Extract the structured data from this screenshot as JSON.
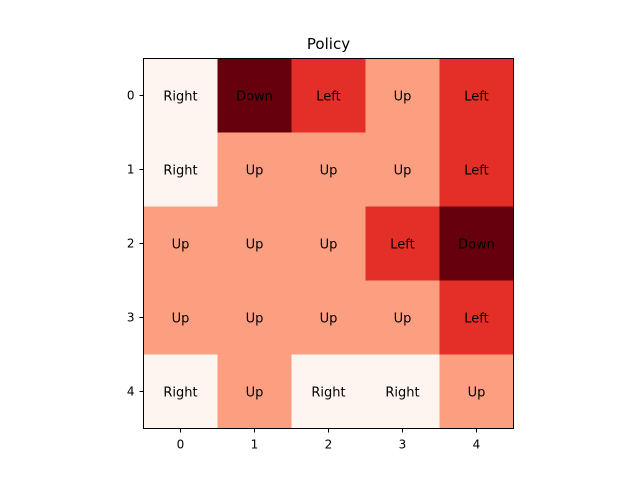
{
  "chart_data": {
    "type": "heatmap",
    "title": "Policy",
    "xlabel": "",
    "ylabel": "",
    "x_ticks": [
      "0",
      "1",
      "2",
      "3",
      "4"
    ],
    "y_ticks": [
      "0",
      "1",
      "2",
      "3",
      "4"
    ],
    "colormap": "Reds",
    "action_values": {
      "Right": 0,
      "Up": 1,
      "Left": 2,
      "Down": 3
    },
    "grid": false,
    "rows": [
      [
        "Right",
        "Down",
        "Left",
        "Up",
        "Left"
      ],
      [
        "Right",
        "Up",
        "Up",
        "Up",
        "Left"
      ],
      [
        "Up",
        "Up",
        "Up",
        "Left",
        "Down"
      ],
      [
        "Up",
        "Up",
        "Up",
        "Up",
        "Left"
      ],
      [
        "Right",
        "Up",
        "Right",
        "Right",
        "Up"
      ]
    ],
    "colors": {
      "Right": "#fff5f0",
      "Up": "#fc9f81",
      "Left": "#e32f27",
      "Down": "#67000d"
    }
  }
}
